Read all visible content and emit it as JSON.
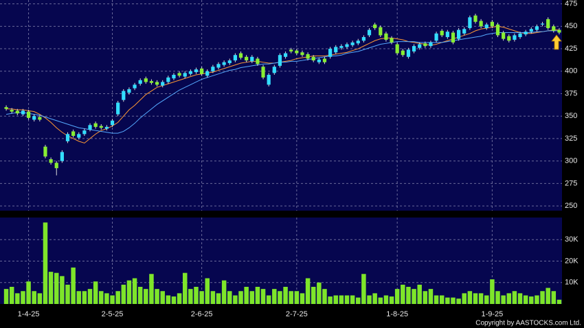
{
  "chart_data": {
    "type": "candlestick",
    "categories": [
      null,
      null,
      null,
      null,
      "1-4-25",
      null,
      null,
      null,
      null,
      null,
      null,
      null,
      null,
      null,
      null,
      null,
      null,
      null,
      null,
      "2-5-25",
      null,
      null,
      null,
      null,
      null,
      null,
      null,
      null,
      null,
      null,
      null,
      null,
      null,
      null,
      null,
      "2-6-25",
      null,
      null,
      null,
      null,
      null,
      null,
      null,
      null,
      null,
      null,
      null,
      null,
      null,
      null,
      null,
      null,
      "2-7-25",
      null,
      null,
      null,
      null,
      null,
      null,
      null,
      null,
      null,
      null,
      null,
      null,
      null,
      null,
      null,
      null,
      null,
      "1-8-25",
      null,
      null,
      null,
      null,
      null,
      null,
      null,
      null,
      null,
      null,
      null,
      null,
      null,
      null,
      null,
      null,
      "1-9-25",
      null,
      null,
      null,
      null,
      null,
      null,
      null,
      null,
      null,
      null,
      null,
      null
    ],
    "open": [
      360,
      357,
      356,
      352,
      355,
      346,
      349,
      316,
      302,
      298,
      300,
      322,
      333,
      326,
      330,
      335,
      342,
      339,
      336,
      340,
      352,
      368,
      376,
      381,
      386,
      392,
      389,
      388,
      384,
      388,
      392,
      398,
      394,
      397,
      399,
      403,
      395,
      400,
      404,
      407,
      409,
      412,
      420,
      416,
      411,
      414,
      405,
      385,
      398,
      406,
      416,
      424,
      423,
      421,
      419,
      416,
      410,
      414,
      416,
      421,
      426,
      427,
      429,
      431,
      434,
      440,
      452,
      449,
      442,
      437,
      430,
      423,
      416,
      422,
      426,
      431,
      428,
      434,
      445,
      438,
      443,
      436,
      442,
      448,
      462,
      456,
      448,
      455,
      452,
      443,
      439,
      435,
      438,
      441,
      444,
      446,
      452,
      458,
      450,
      446
    ],
    "high": [
      362,
      359,
      358,
      358,
      357,
      352,
      351,
      318,
      304,
      300,
      312,
      332,
      335,
      332,
      336,
      342,
      344,
      341,
      340,
      347,
      367,
      380,
      382,
      387,
      392,
      394,
      391,
      390,
      390,
      395,
      398,
      400,
      400,
      402,
      404,
      405,
      402,
      407,
      410,
      412,
      414,
      420,
      422,
      418,
      418,
      416,
      407,
      398,
      407,
      420,
      422,
      426,
      425,
      423,
      421,
      418,
      415,
      416,
      427,
      429,
      430,
      432,
      434,
      436,
      440,
      448,
      454,
      451,
      444,
      439,
      432,
      425,
      426,
      430,
      432,
      433,
      434,
      444,
      447,
      446,
      445,
      448,
      449,
      462,
      464,
      458,
      454,
      457,
      454,
      445,
      441,
      442,
      444,
      446,
      449,
      452,
      455,
      460,
      452,
      448
    ],
    "low": [
      356,
      353,
      351,
      350,
      346,
      344,
      344,
      303,
      296,
      284,
      298,
      320,
      326,
      324,
      328,
      333,
      336,
      335,
      334,
      338,
      350,
      366,
      374,
      379,
      384,
      386,
      385,
      383,
      382,
      386,
      390,
      393,
      392,
      395,
      397,
      395,
      393,
      398,
      402,
      405,
      407,
      410,
      413,
      410,
      409,
      406,
      391,
      383,
      396,
      404,
      414,
      420,
      418,
      416,
      412,
      410,
      408,
      408,
      414,
      419,
      424,
      425,
      427,
      429,
      432,
      438,
      446,
      438,
      433,
      430,
      418,
      416,
      414,
      420,
      424,
      426,
      426,
      432,
      438,
      436,
      430,
      434,
      440,
      446,
      453,
      448,
      446,
      448,
      438,
      434,
      432,
      433,
      436,
      439,
      442,
      444,
      450,
      446,
      443,
      441
    ],
    "close": [
      358,
      355,
      353,
      356,
      348,
      350,
      346,
      305,
      298,
      292,
      310,
      330,
      328,
      330,
      334,
      340,
      338,
      337,
      338,
      345,
      365,
      378,
      380,
      385,
      390,
      388,
      387,
      385,
      388,
      393,
      396,
      395,
      398,
      400,
      402,
      397,
      400,
      405,
      408,
      410,
      412,
      418,
      415,
      412,
      416,
      408,
      393,
      396,
      405,
      418,
      420,
      422,
      420,
      418,
      414,
      412,
      413,
      410,
      425,
      427,
      428,
      430,
      432,
      434,
      438,
      446,
      448,
      440,
      435,
      432,
      420,
      418,
      424,
      428,
      430,
      428,
      432,
      442,
      440,
      444,
      432,
      446,
      447,
      460,
      455,
      450,
      452,
      450,
      440,
      436,
      434,
      440,
      442,
      444,
      447,
      450,
      453,
      448,
      445,
      443
    ],
    "up_color": "#33ddff",
    "down_color": "#88ee33",
    "moving_averages": [
      {
        "color": "#ff9933",
        "values": [
          358,
          358,
          357,
          357,
          356,
          355,
          352,
          348,
          343,
          337,
          332,
          328,
          325,
          322,
          320,
          325,
          330,
          334,
          336,
          339,
          343,
          350,
          357,
          362,
          368,
          374,
          378,
          382,
          384,
          386,
          388,
          390,
          392,
          394,
          396,
          397,
          398,
          399,
          401,
          403,
          405,
          407,
          409,
          410,
          411,
          411,
          410,
          409,
          409,
          410,
          411,
          412,
          414,
          415,
          416,
          417,
          417,
          417,
          418,
          419,
          420,
          421,
          423,
          425,
          428,
          431,
          434,
          436,
          437,
          437,
          436,
          435,
          433,
          432,
          431,
          430,
          429,
          430,
          432,
          434,
          436,
          438,
          440,
          442,
          445,
          447,
          448,
          449,
          450,
          449,
          447,
          445,
          443,
          442,
          442,
          443,
          444,
          445,
          446,
          446
        ]
      },
      {
        "color": "#55aaff",
        "values": [
          352,
          353,
          354,
          354,
          353,
          352,
          351,
          349,
          347,
          345,
          343,
          341,
          339,
          337,
          336,
          335,
          334,
          333,
          332,
          331,
          331,
          333,
          337,
          342,
          348,
          353,
          358,
          363,
          367,
          371,
          375,
          379,
          382,
          385,
          388,
          391,
          393,
          395,
          397,
          399,
          401,
          402,
          404,
          405,
          406,
          407,
          408,
          408,
          409,
          410,
          410,
          411,
          411,
          412,
          413,
          414,
          415,
          416,
          417,
          417,
          418,
          420,
          421,
          422,
          424,
          426,
          428,
          430,
          431,
          432,
          433,
          433,
          433,
          433,
          432,
          432,
          432,
          432,
          432,
          433,
          434,
          435,
          436,
          437,
          438,
          439,
          441,
          442,
          443,
          443,
          443,
          443,
          443,
          443,
          443,
          444,
          444,
          445,
          445,
          445
        ]
      }
    ],
    "ylim": [
      247,
      477
    ],
    "yticks": [
      250,
      275,
      300,
      325,
      350,
      375,
      400,
      425,
      450,
      475
    ],
    "grid": true,
    "volume": {
      "color": "#7ee52a",
      "ylim": [
        0,
        40000
      ],
      "yticks": [
        {
          "value": 10000,
          "label": "10K"
        },
        {
          "value": 20000,
          "label": "20K"
        },
        {
          "value": 30000,
          "label": "30K"
        }
      ],
      "values": [
        7000,
        8000,
        5000,
        6000,
        10500,
        6000,
        5000,
        38000,
        15000,
        14500,
        13000,
        9000,
        17000,
        6000,
        6000,
        7000,
        10500,
        6000,
        5000,
        4000,
        6000,
        9000,
        11000,
        12000,
        8000,
        7000,
        14000,
        7000,
        6000,
        4000,
        3500,
        5000,
        14500,
        7000,
        8000,
        6000,
        12000,
        6000,
        5000,
        11000,
        6000,
        4000,
        6000,
        8000,
        6000,
        8000,
        7000,
        4000,
        7000,
        6000,
        8000,
        6000,
        6000,
        5000,
        12000,
        8000,
        10000,
        7000,
        3500,
        4000,
        4000,
        4000,
        4000,
        3000,
        14000,
        4000,
        5000,
        3000,
        4000,
        3500,
        7000,
        9000,
        8000,
        7000,
        9000,
        6000,
        7000,
        4000,
        4000,
        3000,
        3000,
        2500,
        5000,
        6000,
        5000,
        5000,
        4000,
        11500,
        6000,
        4000,
        5000,
        6000,
        5000,
        4000,
        3500,
        4000,
        6000,
        7500,
        6000,
        2000
      ]
    }
  },
  "footer": "Copyright by AASTOCKS.com Ltd."
}
